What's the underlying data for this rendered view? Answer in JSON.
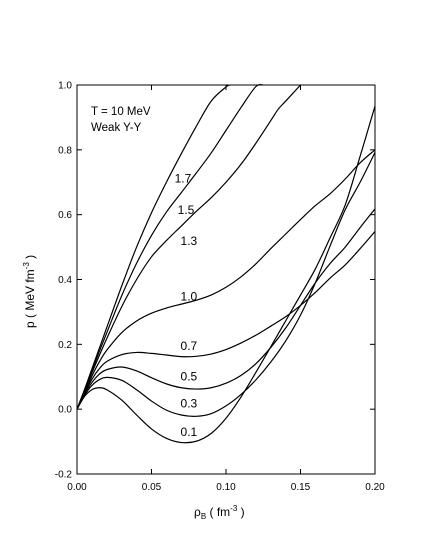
{
  "chart_data": {
    "type": "line",
    "annotation_lines": [
      "T = 10 MeV",
      "Weak Y-Y"
    ],
    "xlabel": {
      "main": "ρ",
      "sub": "B",
      "rest": " ( fm",
      "sup": "-3",
      "close": " )"
    },
    "ylabel": {
      "main": "p ( MeV fm",
      "sup": "-3",
      "close": " )"
    },
    "xlim": [
      0,
      0.2
    ],
    "ylim": [
      -0.2,
      1.0
    ],
    "xticks": [
      "0.00",
      "0.05",
      "0.10",
      "0.15",
      "0.20"
    ],
    "yticks": [
      "-0.2",
      "0.0",
      "0.2",
      "0.4",
      "0.6",
      "0.8",
      "1.0"
    ],
    "grid": false,
    "legend": "none",
    "series": [
      {
        "name": "0.1",
        "x": [
          0,
          0.005,
          0.01,
          0.015,
          0.02,
          0.03,
          0.04,
          0.05,
          0.06,
          0.07,
          0.08,
          0.09,
          0.1,
          0.11,
          0.12,
          0.13,
          0.14,
          0.15,
          0.16,
          0.17,
          0.18,
          0.19,
          0.2
        ],
        "y": [
          0,
          0.039,
          0.06,
          0.066,
          0.06,
          0.028,
          -0.018,
          -0.061,
          -0.09,
          -0.103,
          -0.099,
          -0.075,
          -0.028,
          0.037,
          0.113,
          0.192,
          0.272,
          0.352,
          0.433,
          0.53,
          0.63,
          0.78,
          0.935
        ]
      },
      {
        "name": "0.3",
        "x": [
          0,
          0.005,
          0.01,
          0.015,
          0.02,
          0.03,
          0.04,
          0.05,
          0.06,
          0.07,
          0.08,
          0.09,
          0.1,
          0.11,
          0.12,
          0.13,
          0.14,
          0.15,
          0.16,
          0.17,
          0.18,
          0.19,
          0.2
        ],
        "y": [
          0,
          0.042,
          0.073,
          0.091,
          0.098,
          0.089,
          0.06,
          0.025,
          -0.003,
          -0.018,
          -0.022,
          -0.014,
          0.01,
          0.045,
          0.09,
          0.145,
          0.21,
          0.29,
          0.39,
          0.505,
          0.615,
          0.7,
          0.792
        ]
      },
      {
        "name": "0.5",
        "x": [
          0,
          0.005,
          0.01,
          0.015,
          0.02,
          0.03,
          0.04,
          0.05,
          0.06,
          0.07,
          0.08,
          0.09,
          0.1,
          0.11,
          0.12,
          0.13,
          0.14,
          0.15,
          0.16,
          0.17,
          0.18,
          0.19,
          0.2
        ],
        "y": [
          0,
          0.045,
          0.082,
          0.108,
          0.122,
          0.13,
          0.118,
          0.097,
          0.078,
          0.066,
          0.062,
          0.066,
          0.08,
          0.104,
          0.14,
          0.19,
          0.25,
          0.32,
          0.39,
          0.45,
          0.5,
          0.56,
          0.618
        ]
      },
      {
        "name": "0.7",
        "x": [
          0,
          0.005,
          0.01,
          0.015,
          0.02,
          0.03,
          0.04,
          0.05,
          0.06,
          0.07,
          0.08,
          0.09,
          0.1,
          0.11,
          0.12,
          0.13,
          0.14,
          0.15,
          0.16,
          0.17,
          0.18,
          0.19,
          0.2
        ],
        "y": [
          0,
          0.048,
          0.092,
          0.125,
          0.147,
          0.168,
          0.175,
          0.172,
          0.167,
          0.162,
          0.163,
          0.17,
          0.184,
          0.204,
          0.228,
          0.256,
          0.285,
          0.32,
          0.36,
          0.405,
          0.445,
          0.495,
          0.548
        ]
      },
      {
        "name": "1.0",
        "x": [
          0,
          0.005,
          0.01,
          0.015,
          0.02,
          0.03,
          0.04,
          0.05,
          0.06,
          0.07,
          0.08,
          0.09,
          0.1,
          0.11,
          0.12,
          0.13,
          0.14,
          0.15,
          0.16,
          0.17,
          0.18,
          0.19,
          0.2
        ],
        "y": [
          0,
          0.052,
          0.102,
          0.146,
          0.182,
          0.236,
          0.272,
          0.296,
          0.312,
          0.324,
          0.336,
          0.352,
          0.376,
          0.408,
          0.448,
          0.495,
          0.54,
          0.585,
          0.628,
          0.665,
          0.71,
          0.76,
          0.8
        ]
      },
      {
        "name": "1.3",
        "x": [
          0,
          0.005,
          0.01,
          0.015,
          0.02,
          0.03,
          0.04,
          0.05,
          0.06,
          0.07,
          0.08,
          0.09,
          0.1,
          0.11,
          0.12,
          0.13,
          0.135,
          0.14,
          0.15
        ],
        "y": [
          0,
          0.056,
          0.112,
          0.166,
          0.218,
          0.316,
          0.4,
          0.47,
          0.52,
          0.565,
          0.61,
          0.652,
          0.7,
          0.755,
          0.82,
          0.89,
          0.925,
          0.95,
          1.0
        ]
      },
      {
        "name": "1.5",
        "x": [
          0,
          0.005,
          0.01,
          0.015,
          0.02,
          0.03,
          0.04,
          0.05,
          0.06,
          0.07,
          0.08,
          0.09,
          0.1,
          0.11,
          0.12,
          0.125
        ],
        "y": [
          0,
          0.058,
          0.118,
          0.178,
          0.236,
          0.35,
          0.45,
          0.536,
          0.608,
          0.668,
          0.728,
          0.79,
          0.86,
          0.93,
          0.995,
          1.0
        ]
      },
      {
        "name": "1.7",
        "x": [
          0,
          0.005,
          0.01,
          0.015,
          0.02,
          0.03,
          0.04,
          0.05,
          0.06,
          0.07,
          0.08,
          0.09,
          0.1,
          0.103
        ],
        "y": [
          0,
          0.06,
          0.124,
          0.188,
          0.252,
          0.38,
          0.5,
          0.606,
          0.7,
          0.788,
          0.872,
          0.95,
          0.994,
          1.0
        ]
      }
    ],
    "curve_labels": [
      {
        "text": "0.1",
        "x": 0.0695,
        "y": -0.083
      },
      {
        "text": "0.3",
        "x": 0.0695,
        "y": 0.005
      },
      {
        "text": "0.5",
        "x": 0.0695,
        "y": 0.088
      },
      {
        "text": "0.7",
        "x": 0.0695,
        "y": 0.183
      },
      {
        "text": "1.0",
        "x": 0.0695,
        "y": 0.335
      },
      {
        "text": "1.3",
        "x": 0.0695,
        "y": 0.507
      },
      {
        "text": "1.5",
        "x": 0.0675,
        "y": 0.602
      },
      {
        "text": "1.7",
        "x": 0.0655,
        "y": 0.7
      }
    ]
  }
}
